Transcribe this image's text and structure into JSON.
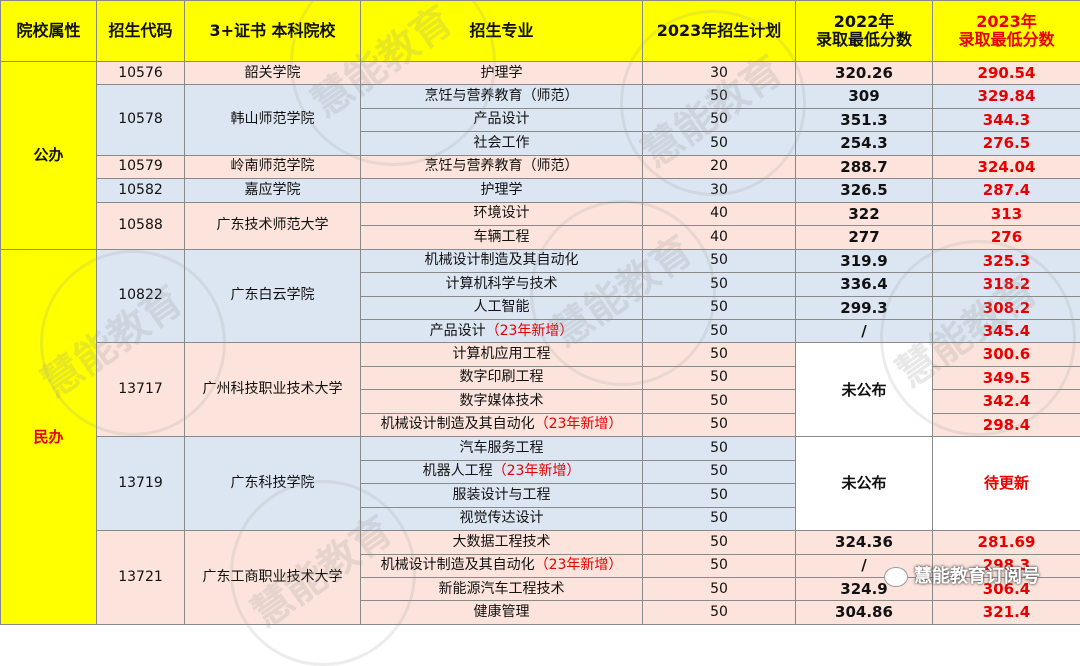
{
  "header": {
    "attr": "院校属性",
    "code": "招生代码",
    "school": "3+证书 本科院校",
    "major": "招生专业",
    "plan": "2023年招生计划",
    "score2022_l1": "2022年",
    "score2022_l2": "录取最低分数",
    "score2023_l1": "2023年",
    "score2023_l2": "录取最低分数"
  },
  "groups": {
    "public": "公办",
    "private": "民办"
  },
  "rows": [
    {
      "code": "10576",
      "school": "韶关学院",
      "major": "护理学",
      "tag": "",
      "plan": "30",
      "s22": "320.26",
      "s23": "290.54"
    },
    {
      "code": "10578",
      "school": "韩山师范学院",
      "major": "烹饪与营养教育（师范）",
      "tag": "",
      "plan": "50",
      "s22": "309",
      "s23": "329.84"
    },
    {
      "major": "产品设计",
      "tag": "",
      "plan": "50",
      "s22": "351.3",
      "s23": "344.3"
    },
    {
      "major": "社会工作",
      "tag": "",
      "plan": "50",
      "s22": "254.3",
      "s23": "276.5"
    },
    {
      "code": "10579",
      "school": "岭南师范学院",
      "major": "烹饪与营养教育（师范）",
      "tag": "",
      "plan": "20",
      "s22": "288.7",
      "s23": "324.04"
    },
    {
      "code": "10582",
      "school": "嘉应学院",
      "major": "护理学",
      "tag": "",
      "plan": "30",
      "s22": "326.5",
      "s23": "287.4"
    },
    {
      "code": "10588",
      "school": "广东技术师范大学",
      "major": "环境设计",
      "tag": "",
      "plan": "40",
      "s22": "322",
      "s23": "313"
    },
    {
      "major": "车辆工程",
      "tag": "",
      "plan": "40",
      "s22": "277",
      "s23": "276"
    },
    {
      "code": "10822",
      "school": "广东白云学院",
      "major": "机械设计制造及其自动化",
      "tag": "",
      "plan": "50",
      "s22": "319.9",
      "s23": "325.3"
    },
    {
      "major": "计算机科学与技术",
      "tag": "",
      "plan": "50",
      "s22": "336.4",
      "s23": "318.2"
    },
    {
      "major": "人工智能",
      "tag": "",
      "plan": "50",
      "s22": "299.3",
      "s23": "308.2"
    },
    {
      "major": "产品设计",
      "tag": "（23年新增）",
      "plan": "50",
      "s22": "/",
      "s23": "345.4"
    },
    {
      "code": "13717",
      "school": "广州科技职业技术大学",
      "major": "计算机应用工程",
      "tag": "",
      "plan": "50",
      "s22": "未公布",
      "s23": "300.6"
    },
    {
      "major": "数字印刷工程",
      "tag": "",
      "plan": "50",
      "s23": "349.5"
    },
    {
      "major": "数字媒体技术",
      "tag": "",
      "plan": "50",
      "s23": "342.4"
    },
    {
      "major": "机械设计制造及其自动化",
      "tag": "（23年新增）",
      "plan": "50",
      "s23": "298.4"
    },
    {
      "code": "13719",
      "school": "广东科技学院",
      "major": "汽车服务工程",
      "tag": "",
      "plan": "50",
      "s22": "未公布",
      "s23": "待更新"
    },
    {
      "major": "机器人工程",
      "tag": "（23年新增）",
      "plan": "50"
    },
    {
      "major": "服装设计与工程",
      "tag": "",
      "plan": "50"
    },
    {
      "major": "视觉传达设计",
      "tag": "",
      "plan": "50"
    },
    {
      "code": "13721",
      "school": "广东工商职业技术大学",
      "major": "大数据工程技术",
      "tag": "",
      "plan": "50",
      "s22": "324.36",
      "s23": "281.69"
    },
    {
      "major": "机械设计制造及其自动化",
      "tag": "（23年新增）",
      "plan": "50",
      "s22": "/",
      "s23": "298.3"
    },
    {
      "major": "新能源汽车工程技术",
      "tag": "",
      "plan": "50",
      "s22": "324.9",
      "s23": "306.4"
    },
    {
      "major": "健康管理",
      "tag": "",
      "plan": "50",
      "s22": "304.86",
      "s23": "321.4"
    }
  ],
  "watermark": "慧能教育",
  "credit": "慧能教育订阅号",
  "colors": {
    "header_bg": "#ffff00",
    "pink_band": "#fce4dc",
    "blue_band": "#dce6f2",
    "highlight_red": "#e60000"
  }
}
